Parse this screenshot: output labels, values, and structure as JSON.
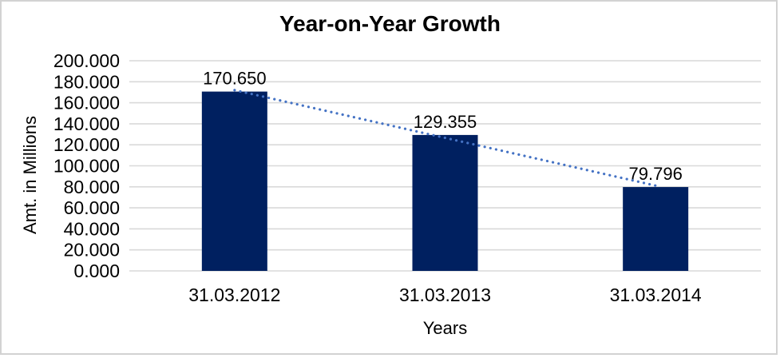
{
  "window": {
    "background": "#ffffff",
    "frame_border_color": "#d2d2d2"
  },
  "chart_data": {
    "type": "bar",
    "title": "Year-on-Year Growth",
    "xlabel": "Years",
    "ylabel": "Amt. in Millions",
    "categories": [
      "31.03.2012",
      "31.03.2013",
      "31.03.2014"
    ],
    "values": [
      170.65,
      129.355,
      79.796
    ],
    "value_labels": [
      "170.650",
      "129.355",
      "79.796"
    ],
    "ylim": [
      0,
      200
    ],
    "ytick_step": 20,
    "ytick_labels": [
      "0.000",
      "20.000",
      "40.000",
      "60.000",
      "80.000",
      "100.000",
      "120.000",
      "140.000",
      "160.000",
      "180.000",
      "200.000"
    ],
    "grid": "horizontal",
    "legend": "none",
    "bar_color": "#002060",
    "gridline_color": "#d9d9d9",
    "axis_text_color": "#000000",
    "trendline": {
      "type": "linear",
      "style": "dotted",
      "color": "#4472c4"
    }
  }
}
